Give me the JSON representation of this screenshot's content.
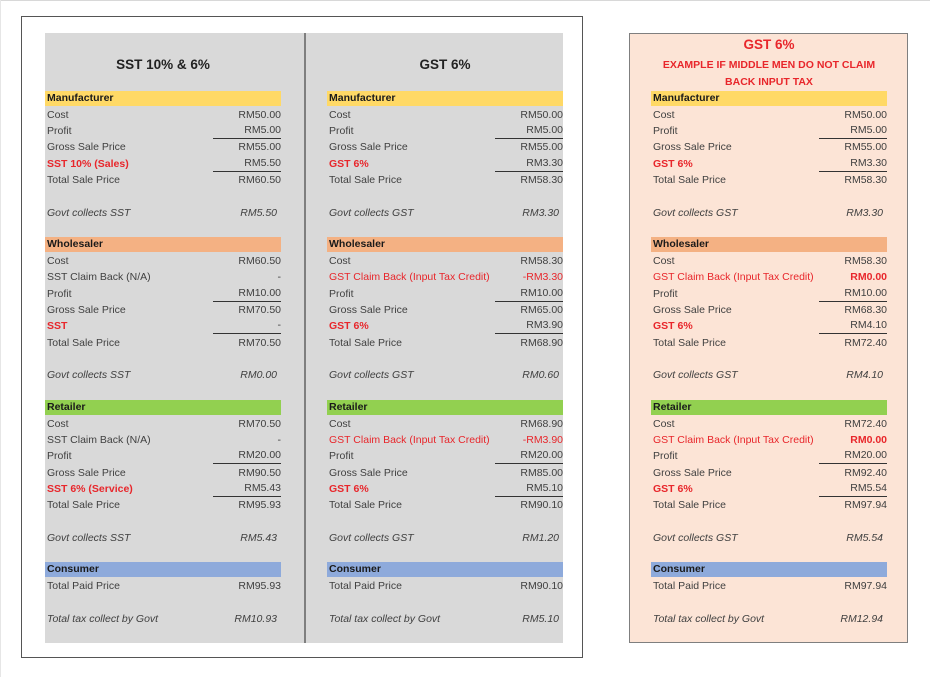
{
  "colors": {
    "manufacturer": "#ffd966",
    "wholesaler": "#f4b183",
    "retailer": "#92d050",
    "consumer": "#8eaadb",
    "tax_red": "#e8262b",
    "gray_panel": "#d9d9d9",
    "peach_panel": "#fce4d6"
  },
  "columns": [
    {
      "title": "SST 10% & 6%",
      "manufacturer": {
        "header": "Manufacturer",
        "rows": [
          {
            "label": "Cost",
            "value": "RM50.00"
          },
          {
            "label": "Profit",
            "value": "RM5.00"
          },
          {
            "label": "Gross Sale Price",
            "value": "RM55.00"
          },
          {
            "label": "SST 10% (Sales)",
            "value": "RM5.50"
          },
          {
            "label": "Total Sale Price",
            "value": "RM60.50"
          }
        ],
        "govt_label": "Govt collects SST",
        "govt_value": "RM5.50"
      },
      "wholesaler": {
        "header": "Wholesaler",
        "rows": [
          {
            "label": "Cost",
            "value": "RM60.50"
          },
          {
            "label": "SST Claim Back (N/A)",
            "value": "-"
          },
          {
            "label": "Profit",
            "value": "RM10.00"
          },
          {
            "label": "Gross Sale Price",
            "value": "RM70.50"
          },
          {
            "label": "SST",
            "value": "-"
          },
          {
            "label": "Total Sale Price",
            "value": "RM70.50"
          }
        ],
        "govt_label": "Govt collects SST",
        "govt_value": "RM0.00"
      },
      "retailer": {
        "header": "Retailer",
        "rows": [
          {
            "label": "Cost",
            "value": "RM70.50"
          },
          {
            "label": "SST Claim Back (N/A)",
            "value": "-"
          },
          {
            "label": "Profit",
            "value": "RM20.00"
          },
          {
            "label": "Gross Sale Price",
            "value": "RM90.50"
          },
          {
            "label": "SST 6% (Service)",
            "value": "RM5.43"
          },
          {
            "label": "Total Sale Price",
            "value": "RM95.93"
          }
        ],
        "govt_label": "Govt collects SST",
        "govt_value": "RM5.43"
      },
      "consumer": {
        "header": "Consumer",
        "paid_label": "Total Paid Price",
        "paid_value": "RM95.93",
        "total_label": "Total tax collect by Govt",
        "total_value": "RM10.93"
      }
    },
    {
      "title": "GST 6%",
      "manufacturer": {
        "header": "Manufacturer",
        "rows": [
          {
            "label": "Cost",
            "value": "RM50.00"
          },
          {
            "label": "Profit",
            "value": "RM5.00"
          },
          {
            "label": "Gross Sale Price",
            "value": "RM55.00"
          },
          {
            "label": "GST 6%",
            "value": "RM3.30"
          },
          {
            "label": "Total Sale Price",
            "value": "RM58.30"
          }
        ],
        "govt_label": "Govt collects GST",
        "govt_value": "RM3.30"
      },
      "wholesaler": {
        "header": "Wholesaler",
        "rows": [
          {
            "label": "Cost",
            "value": "RM58.30"
          },
          {
            "label": "GST Claim Back (Input Tax Credit)",
            "value": "-RM3.30"
          },
          {
            "label": "Profit",
            "value": "RM10.00"
          },
          {
            "label": "Gross Sale Price",
            "value": "RM65.00"
          },
          {
            "label": "GST 6%",
            "value": "RM3.90"
          },
          {
            "label": "Total Sale Price",
            "value": "RM68.90"
          }
        ],
        "govt_label": "Govt collects GST",
        "govt_value": "RM0.60"
      },
      "retailer": {
        "header": "Retailer",
        "rows": [
          {
            "label": "Cost",
            "value": "RM68.90"
          },
          {
            "label": "GST Claim Back (Input Tax Credit)",
            "value": "-RM3.90"
          },
          {
            "label": "Profit",
            "value": "RM20.00"
          },
          {
            "label": "Gross Sale Price",
            "value": "RM85.00"
          },
          {
            "label": "GST 6%",
            "value": "RM5.10"
          },
          {
            "label": "Total Sale Price",
            "value": "RM90.10"
          }
        ],
        "govt_label": "Govt collects GST",
        "govt_value": "RM1.20"
      },
      "consumer": {
        "header": "Consumer",
        "paid_label": "Total Paid Price",
        "paid_value": "RM90.10",
        "total_label": "Total tax collect by Govt",
        "total_value": "RM5.10"
      }
    },
    {
      "title": "GST 6%",
      "subtitle_line1": "EXAMPLE IF MIDDLE MEN DO NOT CLAIM",
      "subtitle_line2": "BACK INPUT TAX",
      "manufacturer": {
        "header": "Manufacturer",
        "rows": [
          {
            "label": "Cost",
            "value": "RM50.00"
          },
          {
            "label": "Profit",
            "value": "RM5.00"
          },
          {
            "label": "Gross Sale Price",
            "value": "RM55.00"
          },
          {
            "label": "GST 6%",
            "value": "RM3.30"
          },
          {
            "label": "Total Sale Price",
            "value": "RM58.30"
          }
        ],
        "govt_label": "Govt collects GST",
        "govt_value": "RM3.30"
      },
      "wholesaler": {
        "header": "Wholesaler",
        "rows": [
          {
            "label": "Cost",
            "value": "RM58.30"
          },
          {
            "label": "GST Claim Back (Input Tax Credit)",
            "value": "RM0.00"
          },
          {
            "label": "Profit",
            "value": "RM10.00"
          },
          {
            "label": "Gross Sale Price",
            "value": "RM68.30"
          },
          {
            "label": "GST 6%",
            "value": "RM4.10"
          },
          {
            "label": "Total Sale Price",
            "value": "RM72.40"
          }
        ],
        "govt_label": "Govt collects GST",
        "govt_value": "RM4.10"
      },
      "retailer": {
        "header": "Retailer",
        "rows": [
          {
            "label": "Cost",
            "value": "RM72.40"
          },
          {
            "label": "GST Claim Back (Input Tax Credit)",
            "value": "RM0.00"
          },
          {
            "label": "Profit",
            "value": "RM20.00"
          },
          {
            "label": "Gross Sale Price",
            "value": "RM92.40"
          },
          {
            "label": "GST 6%",
            "value": "RM5.54"
          },
          {
            "label": "Total Sale Price",
            "value": "RM97.94"
          }
        ],
        "govt_label": "Govt collects GST",
        "govt_value": "RM5.54"
      },
      "consumer": {
        "header": "Consumer",
        "paid_label": "Total Paid Price",
        "paid_value": "RM97.94",
        "total_label": "Total tax collect by Govt",
        "total_value": "RM12.94"
      }
    }
  ]
}
